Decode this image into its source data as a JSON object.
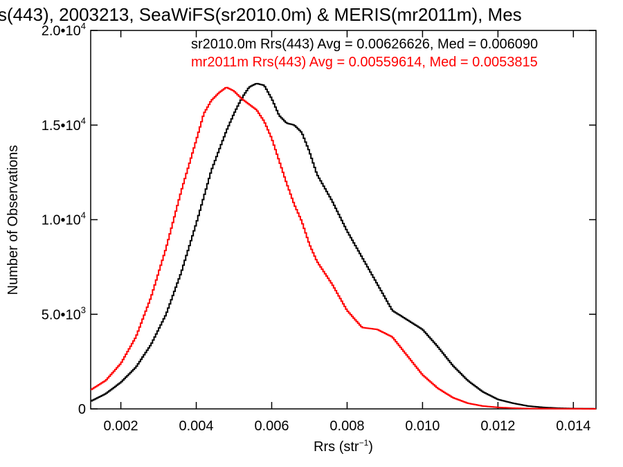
{
  "chart_data": {
    "type": "line",
    "title": "s(443), 2003213, SeaWiFS(sr2010.0m) & MERIS(mr2011m), Mes",
    "xlabel": "Rrs (str",
    "xlabel_sup": "−1",
    "xlabel_end": ")",
    "ylabel": "Number of Observations",
    "xlim": [
      0.0012,
      0.0146
    ],
    "ylim": [
      0,
      20000
    ],
    "x_ticks": [
      {
        "value": 0.002,
        "label": "0.002"
      },
      {
        "value": 0.004,
        "label": "0.004"
      },
      {
        "value": 0.006,
        "label": "0.006"
      },
      {
        "value": 0.008,
        "label": "0.008"
      },
      {
        "value": 0.01,
        "label": "0.010"
      },
      {
        "value": 0.012,
        "label": "0.012"
      },
      {
        "value": 0.014,
        "label": "0.014"
      }
    ],
    "y_ticks": [
      {
        "value": 0,
        "label": "0",
        "sup": ""
      },
      {
        "value": 5000,
        "label": "5.0•10",
        "sup": "3"
      },
      {
        "value": 10000,
        "label": "1.0•10",
        "sup": "4"
      },
      {
        "value": 15000,
        "label": "1.5•10",
        "sup": "4"
      },
      {
        "value": 20000,
        "label": "2.0•10",
        "sup": "4"
      }
    ],
    "legend_placement": "top-right",
    "grid": false,
    "series": [
      {
        "name": "sr2010.0m Rrs(443) Avg = 0.00626626, Med = 0.006090",
        "color": "#000000",
        "x": [
          0.0012,
          0.0016,
          0.002,
          0.0024,
          0.0028,
          0.0032,
          0.0036,
          0.004,
          0.0044,
          0.0048,
          0.005,
          0.0052,
          0.0054,
          0.0056,
          0.0058,
          0.006,
          0.0062,
          0.0064,
          0.0066,
          0.0068,
          0.007,
          0.0072,
          0.0076,
          0.008,
          0.0084,
          0.0088,
          0.0092,
          0.0096,
          0.01,
          0.0104,
          0.0108,
          0.0112,
          0.0116,
          0.012,
          0.0124,
          0.0128,
          0.0132,
          0.0136,
          0.014,
          0.0146
        ],
        "y": [
          400,
          800,
          1400,
          2200,
          3400,
          5000,
          7200,
          9800,
          12600,
          14700,
          15600,
          16400,
          17000,
          17200,
          17100,
          16400,
          15500,
          15100,
          15000,
          14600,
          13600,
          12400,
          11000,
          9400,
          8000,
          6600,
          5200,
          4700,
          4200,
          3300,
          2300,
          1500,
          900,
          500,
          300,
          150,
          80,
          40,
          20,
          10
        ]
      },
      {
        "name": "mr2011m Rrs(443) Avg = 0.00559614, Med = 0.0053815",
        "color": "#ff0000",
        "x": [
          0.0012,
          0.0016,
          0.002,
          0.0024,
          0.0028,
          0.0032,
          0.0036,
          0.004,
          0.0042,
          0.0044,
          0.0046,
          0.0048,
          0.005,
          0.0052,
          0.0054,
          0.0056,
          0.0058,
          0.006,
          0.0062,
          0.0064,
          0.0066,
          0.0068,
          0.007,
          0.0072,
          0.0076,
          0.008,
          0.0084,
          0.0088,
          0.0092,
          0.0096,
          0.01,
          0.0104,
          0.0108,
          0.0112,
          0.0116,
          0.012,
          0.0124,
          0.0128,
          0.0136,
          0.0146
        ],
        "y": [
          1000,
          1500,
          2400,
          3800,
          5900,
          8500,
          11500,
          14200,
          15600,
          16300,
          16700,
          17000,
          16800,
          16400,
          16100,
          15800,
          15200,
          14300,
          13100,
          11900,
          10800,
          9900,
          8700,
          7800,
          6600,
          5200,
          4300,
          4200,
          3800,
          2800,
          1800,
          1100,
          600,
          300,
          150,
          80,
          40,
          20,
          10,
          5
        ]
      }
    ]
  }
}
